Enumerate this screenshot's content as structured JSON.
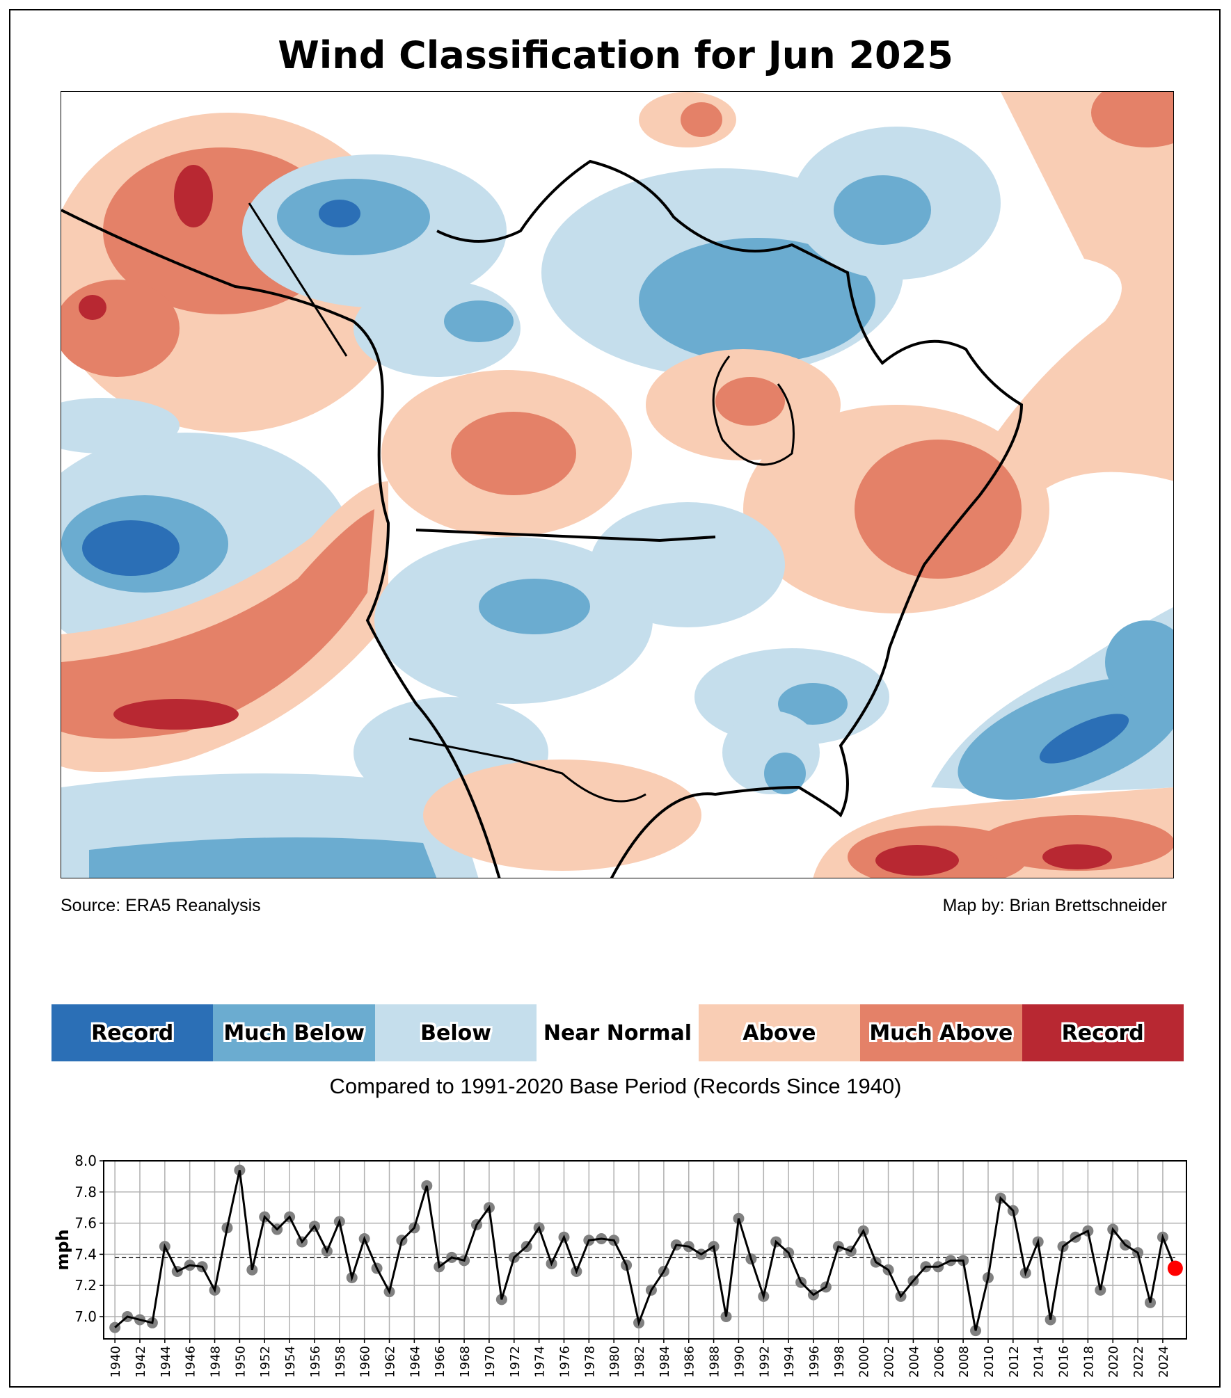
{
  "title": "Wind Classification for Jun 2025",
  "source": "Source: ERA5 Reanalysis",
  "credit": "Map by: Brian Brettschneider",
  "legend": [
    {
      "label": "Record",
      "color": "#2b6fb6"
    },
    {
      "label": "Much Below",
      "color": "#6bacd0"
    },
    {
      "label": "Below",
      "color": "#c5deec"
    },
    {
      "label": "Near Normal",
      "color": "#ffffff"
    },
    {
      "label": "Above",
      "color": "#f9cdb4"
    },
    {
      "label": "Much Above",
      "color": "#e48168"
    },
    {
      "label": "Record",
      "color": "#b82832"
    }
  ],
  "base_period": "Compared to 1991-2020 Base Period   (Records Since 1940)",
  "chart_data": {
    "type": "line",
    "ylabel": "mph",
    "xlabel": "",
    "ylim": [
      6.857,
      8.0
    ],
    "xlim": [
      1939.1,
      2025.9
    ],
    "yticks": [
      "7.0",
      "7.2",
      "7.4",
      "7.6",
      "7.8",
      "8.0"
    ],
    "grid": true,
    "mean": 7.38,
    "highlight_year": 2025,
    "highlight_color": "#ff0000",
    "x": [
      1940,
      1941,
      1942,
      1943,
      1944,
      1945,
      1946,
      1947,
      1948,
      1949,
      1950,
      1951,
      1952,
      1953,
      1954,
      1955,
      1956,
      1957,
      1958,
      1959,
      1960,
      1961,
      1962,
      1963,
      1964,
      1965,
      1966,
      1967,
      1968,
      1969,
      1970,
      1971,
      1972,
      1973,
      1974,
      1975,
      1976,
      1977,
      1978,
      1979,
      1980,
      1981,
      1982,
      1983,
      1984,
      1985,
      1986,
      1987,
      1988,
      1989,
      1990,
      1991,
      1992,
      1993,
      1994,
      1995,
      1996,
      1997,
      1998,
      1999,
      2000,
      2001,
      2002,
      2003,
      2004,
      2005,
      2006,
      2007,
      2008,
      2009,
      2010,
      2011,
      2012,
      2013,
      2014,
      2015,
      2016,
      2017,
      2018,
      2019,
      2020,
      2021,
      2022,
      2023,
      2024,
      2025
    ],
    "values": [
      6.93,
      7.0,
      6.98,
      6.96,
      7.45,
      7.29,
      7.33,
      7.32,
      7.17,
      7.57,
      7.94,
      7.3,
      7.64,
      7.56,
      7.64,
      7.48,
      7.58,
      7.42,
      7.61,
      7.25,
      7.5,
      7.31,
      7.16,
      7.49,
      7.57,
      7.84,
      7.32,
      7.38,
      7.36,
      7.59,
      7.7,
      7.11,
      7.38,
      7.45,
      7.57,
      7.34,
      7.51,
      7.29,
      7.49,
      7.5,
      7.49,
      7.33,
      6.96,
      7.17,
      7.29,
      7.46,
      7.45,
      7.4,
      7.45,
      7.0,
      7.63,
      7.37,
      7.13,
      7.48,
      7.41,
      7.22,
      7.14,
      7.19,
      7.45,
      7.42,
      7.55,
      7.35,
      7.3,
      7.13,
      7.23,
      7.32,
      7.32,
      7.36,
      7.36,
      6.91,
      7.25,
      7.76,
      7.68,
      7.28,
      7.48,
      6.98,
      7.45,
      7.51,
      7.55,
      7.17,
      7.56,
      7.46,
      7.41,
      7.09,
      7.51,
      7.31
    ]
  }
}
